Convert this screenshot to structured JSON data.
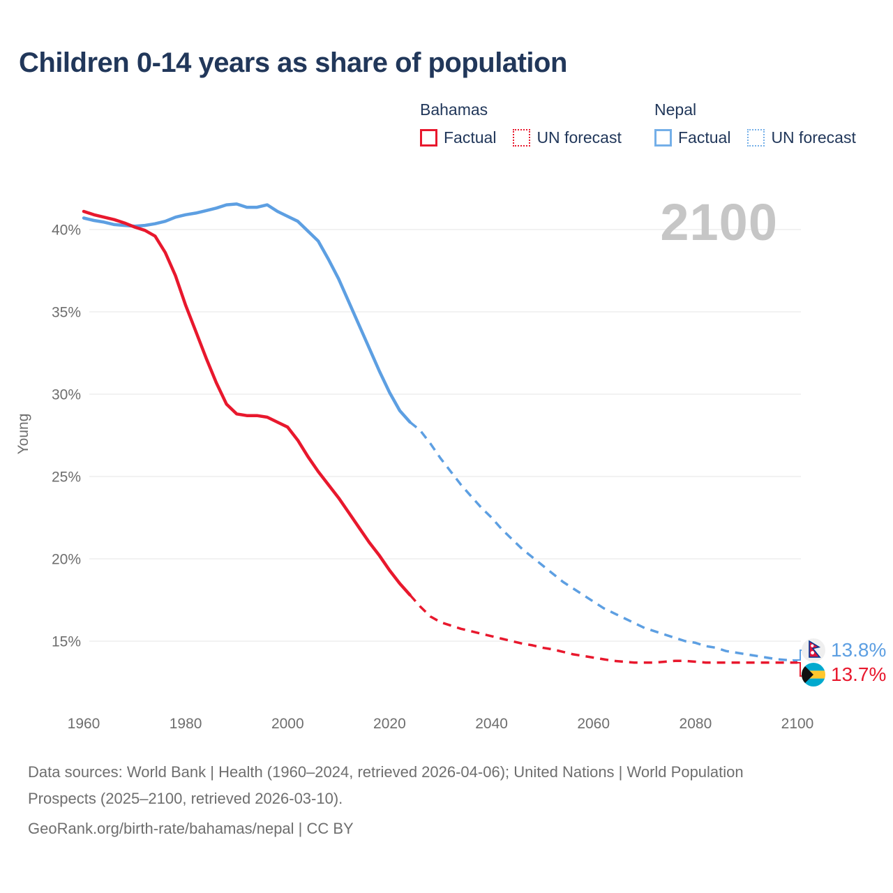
{
  "header": {
    "title": "Children 0-14 years as share of population"
  },
  "watermark": "2100",
  "colors": {
    "bahamas": "#e8182d",
    "nepal": "#5d9fe2",
    "nepal_light": "#74afe8",
    "title_navy": "#21375a",
    "axis_gray": "#6e6e6e",
    "gridline": "#eaeaea",
    "watermark_gray": "#c6c6c6"
  },
  "legend": {
    "bahamas": {
      "title": "Bahamas",
      "factual": "Factual",
      "forecast": "UN forecast"
    },
    "nepal": {
      "title": "Nepal",
      "factual": "Factual",
      "forecast": "UN forecast"
    }
  },
  "end_labels": {
    "nepal": {
      "value": "13.8%",
      "flag": "nepal-flag"
    },
    "bahamas": {
      "value": "13.7%",
      "flag": "bahamas-flag"
    }
  },
  "footer": {
    "sources": "Data sources: World Bank | Health (1960–2024, retrieved 2026-04-06); United Nations | World Population Prospects (2025–2100, retrieved 2026-03-10).",
    "link": "GeoRank.org/birth-rate/bahamas/nepal | CC BY"
  },
  "chart_data": {
    "type": "line",
    "title": "Children 0-14 years as share of population",
    "xlabel": "",
    "ylabel": "Young",
    "unit": "%",
    "xlim": [
      1958,
      2102
    ],
    "ylim": [
      13,
      43
    ],
    "grid": "horizontal",
    "legend_position": "top-right",
    "y_ticks": [
      {
        "label": "15%",
        "value": 15
      },
      {
        "label": "20%",
        "value": 20
      },
      {
        "label": "25%",
        "value": 25
      },
      {
        "label": "30%",
        "value": 30
      },
      {
        "label": "35%",
        "value": 35
      },
      {
        "label": "40%",
        "value": 40
      }
    ],
    "x_ticks": [
      {
        "label": "1960",
        "value": 1960
      },
      {
        "label": "1980",
        "value": 1980
      },
      {
        "label": "2000",
        "value": 2000
      },
      {
        "label": "2020",
        "value": 2020
      },
      {
        "label": "2040",
        "value": 2040
      },
      {
        "label": "2060",
        "value": 2060
      },
      {
        "label": "2080",
        "value": 2080
      },
      {
        "label": "2100",
        "value": 2100
      }
    ],
    "series": [
      {
        "name": "Nepal Factual",
        "country": "nepal",
        "style": "solid",
        "x": [
          1960,
          1962,
          1964,
          1966,
          1968,
          1970,
          1972,
          1974,
          1976,
          1978,
          1980,
          1982,
          1984,
          1986,
          1988,
          1990,
          1992,
          1994,
          1996,
          1998,
          2000,
          2002,
          2004,
          2006,
          2008,
          2010,
          2012,
          2014,
          2016,
          2018,
          2020,
          2022,
          2024
        ],
        "values": [
          40.7,
          40.55,
          40.45,
          40.3,
          40.25,
          40.2,
          40.25,
          40.35,
          40.5,
          40.75,
          40.9,
          41.0,
          41.15,
          41.3,
          41.5,
          41.55,
          41.35,
          41.35,
          41.5,
          41.1,
          40.8,
          40.5,
          39.9,
          39.3,
          38.2,
          37.0,
          35.6,
          34.2,
          32.8,
          31.4,
          30.1,
          29.0,
          28.3
        ]
      },
      {
        "name": "Nepal UN forecast",
        "country": "nepal",
        "style": "dashed",
        "x": [
          2024,
          2026,
          2028,
          2030,
          2032,
          2034,
          2036,
          2038,
          2040,
          2042,
          2044,
          2046,
          2048,
          2050,
          2052,
          2054,
          2056,
          2058,
          2060,
          2062,
          2064,
          2066,
          2068,
          2070,
          2072,
          2074,
          2076,
          2078,
          2080,
          2082,
          2084,
          2086,
          2088,
          2090,
          2092,
          2094,
          2096,
          2098,
          2100
        ],
        "values": [
          28.3,
          27.8,
          27.0,
          26.1,
          25.3,
          24.5,
          23.8,
          23.1,
          22.5,
          21.8,
          21.2,
          20.6,
          20.1,
          19.6,
          19.1,
          18.6,
          18.2,
          17.8,
          17.4,
          17.0,
          16.7,
          16.4,
          16.1,
          15.8,
          15.6,
          15.4,
          15.2,
          15.0,
          14.9,
          14.7,
          14.6,
          14.4,
          14.3,
          14.2,
          14.1,
          14.0,
          13.9,
          13.85,
          13.8
        ]
      },
      {
        "name": "Bahamas Factual",
        "country": "bahamas",
        "style": "solid",
        "x": [
          1960,
          1962,
          1964,
          1966,
          1968,
          1970,
          1972,
          1974,
          1976,
          1978,
          1980,
          1982,
          1984,
          1986,
          1988,
          1990,
          1992,
          1994,
          1996,
          1998,
          2000,
          2002,
          2004,
          2006,
          2008,
          2010,
          2012,
          2014,
          2016,
          2018,
          2020,
          2022,
          2024
        ],
        "values": [
          41.1,
          40.9,
          40.75,
          40.6,
          40.4,
          40.15,
          39.95,
          39.6,
          38.6,
          37.2,
          35.4,
          33.8,
          32.2,
          30.7,
          29.4,
          28.8,
          28.7,
          28.7,
          28.6,
          28.3,
          28.0,
          27.2,
          26.2,
          25.3,
          24.5,
          23.7,
          22.8,
          21.9,
          21.0,
          20.2,
          19.3,
          18.5,
          17.8
        ]
      },
      {
        "name": "Bahamas UN forecast",
        "country": "bahamas",
        "style": "dashed",
        "x": [
          2024,
          2026,
          2028,
          2030,
          2032,
          2034,
          2036,
          2038,
          2040,
          2042,
          2044,
          2046,
          2048,
          2050,
          2052,
          2054,
          2056,
          2058,
          2060,
          2062,
          2064,
          2066,
          2068,
          2070,
          2072,
          2074,
          2076,
          2078,
          2080,
          2082,
          2084,
          2086,
          2088,
          2090,
          2092,
          2094,
          2096,
          2098,
          2100
        ],
        "values": [
          17.8,
          17.1,
          16.5,
          16.15,
          15.95,
          15.75,
          15.6,
          15.45,
          15.3,
          15.15,
          15.0,
          14.85,
          14.75,
          14.6,
          14.5,
          14.35,
          14.2,
          14.1,
          14.0,
          13.9,
          13.8,
          13.75,
          13.7,
          13.7,
          13.7,
          13.75,
          13.8,
          13.8,
          13.75,
          13.7,
          13.7,
          13.7,
          13.7,
          13.7,
          13.7,
          13.7,
          13.7,
          13.7,
          13.7
        ]
      }
    ],
    "end_annotations": [
      {
        "series": "Nepal UN forecast",
        "year": 2100,
        "value": 13.8,
        "label": "13.8%"
      },
      {
        "series": "Bahamas UN forecast",
        "year": 2100,
        "value": 13.7,
        "label": "13.7%"
      }
    ]
  }
}
